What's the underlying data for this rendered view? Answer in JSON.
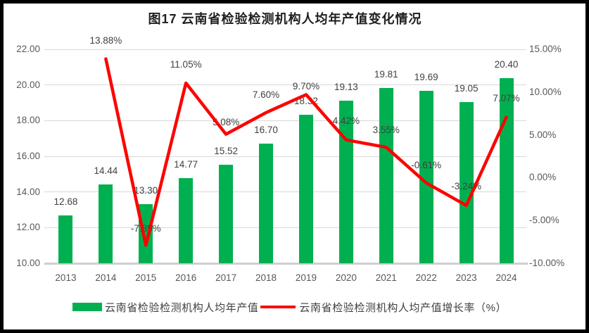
{
  "chart_data": {
    "type": "combo-bar-line",
    "title": "图17  云南省检验检测机构人均年产值变化情况",
    "categories": [
      "2013",
      "2014",
      "2015",
      "2016",
      "2017",
      "2018",
      "2019",
      "2020",
      "2021",
      "2022",
      "2023",
      "2024"
    ],
    "series": [
      {
        "name": "云南省检验检测机构人均年产值",
        "type": "bar",
        "axis": "left",
        "values": [
          12.68,
          14.44,
          13.3,
          14.77,
          15.52,
          16.7,
          18.32,
          19.13,
          19.81,
          19.69,
          19.05,
          20.4
        ],
        "data_labels": [
          "12.68",
          "14.44",
          "13.30",
          "14.77",
          "15.52",
          "16.70",
          "18.32",
          "19.13",
          "19.81",
          "19.69",
          "19.05",
          "20.40"
        ]
      },
      {
        "name": "云南省检验检测机构人均产值增长率（%）",
        "type": "line",
        "axis": "right",
        "values": [
          null,
          13.88,
          -7.89,
          11.05,
          5.08,
          7.6,
          9.7,
          4.42,
          3.55,
          -0.61,
          -3.24,
          7.07
        ],
        "data_labels": [
          "",
          "13.88%",
          "-7.89%",
          "11.05%",
          "5.08%",
          "7.60%",
          "9.70%",
          "4.42%",
          "3.55%",
          "-0.61%",
          "-3.24%",
          "7.07%"
        ]
      }
    ],
    "left_axis": {
      "min": 10,
      "max": 22,
      "ticks": [
        "22.00",
        "20.00",
        "18.00",
        "16.00",
        "14.00",
        "12.00",
        "10.00"
      ]
    },
    "right_axis": {
      "min": -10,
      "max": 15,
      "ticks": [
        "15.00%",
        "10.00%",
        "5.00%",
        "0.00%",
        "-5.00%",
        "-10.00%"
      ]
    },
    "gridlines": true,
    "legend_position": "bottom"
  },
  "legend": {
    "items": [
      {
        "label": "云南省检验检测机构人均年产值",
        "marker": "bar"
      },
      {
        "label": "云南省检验检测机构人均产值增长率（%）",
        "marker": "line"
      }
    ]
  },
  "colors": {
    "bar": "#00B050",
    "line": "#FF0000",
    "grid": "#D9D9D9",
    "axis_line": "#D0CECE",
    "tick_text": "#595959",
    "data_label_text": "#404040",
    "title_text": "#1F1F1F",
    "border": "#000000"
  }
}
